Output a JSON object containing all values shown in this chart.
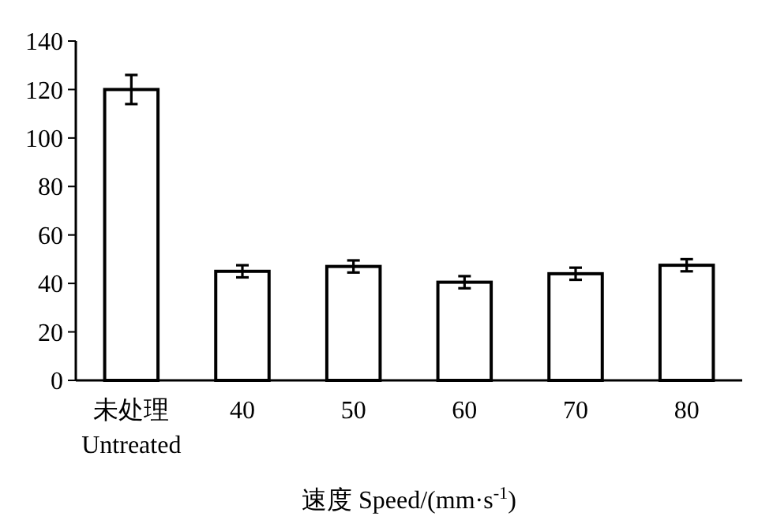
{
  "chart_data": {
    "type": "bar",
    "xlabel": "速度 Speed/(mm·s$^{-1}$)",
    "categories": [
      "未处理\nUntreated",
      "40",
      "50",
      "60",
      "70",
      "80"
    ],
    "values": [
      120,
      45,
      47,
      40.5,
      44,
      47.5
    ],
    "errors": [
      6,
      2.5,
      2.5,
      2.5,
      2.5,
      2.5
    ],
    "color": "#ffffff",
    "ylim": [
      0,
      140
    ],
    "yticks": [
      0,
      20,
      40,
      60,
      80,
      100,
      120,
      140
    ],
    "grid": false
  }
}
